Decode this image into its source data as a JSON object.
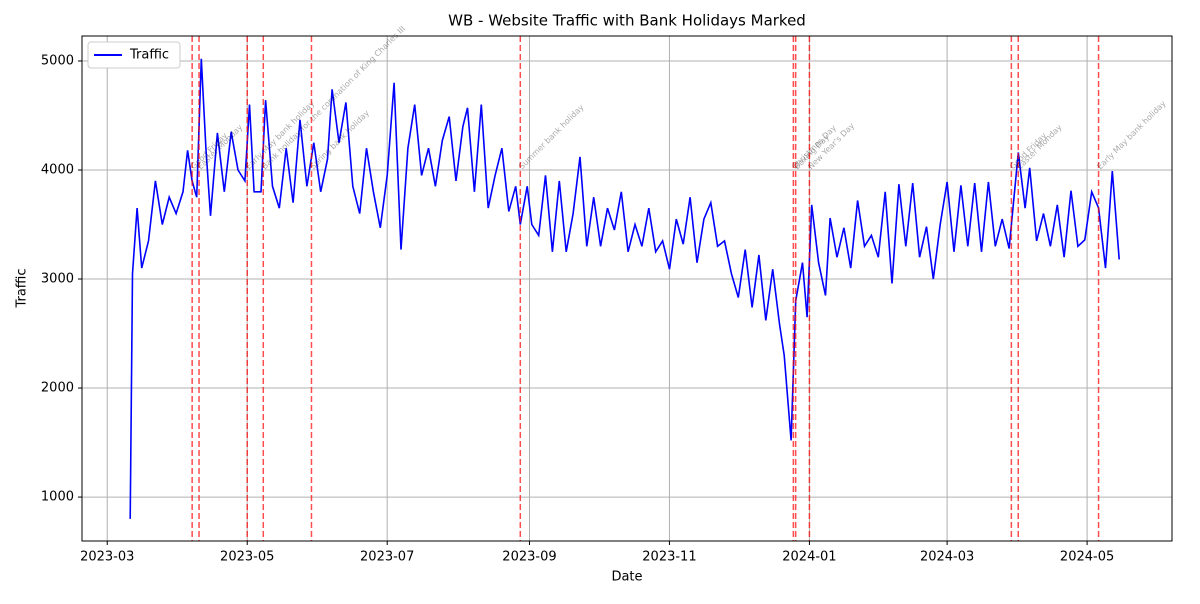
{
  "chart_data": {
    "type": "line",
    "title": "WB - Website Traffic with Bank Holidays Marked",
    "x_label": "Date",
    "y_label": "Traffic",
    "x": [
      "2023-03-11",
      "2023-03-12",
      "2023-03-14",
      "2023-03-16",
      "2023-03-19",
      "2023-03-22",
      "2023-03-25",
      "2023-03-28",
      "2023-03-31",
      "2023-04-03",
      "2023-04-05",
      "2023-04-07",
      "2023-04-09",
      "2023-04-11",
      "2023-04-13",
      "2023-04-15",
      "2023-04-18",
      "2023-04-21",
      "2023-04-24",
      "2023-04-27",
      "2023-04-30",
      "2023-05-02",
      "2023-05-04",
      "2023-05-07",
      "2023-05-09",
      "2023-05-12",
      "2023-05-15",
      "2023-05-18",
      "2023-05-21",
      "2023-05-24",
      "2023-05-27",
      "2023-05-30",
      "2023-06-02",
      "2023-06-05",
      "2023-06-07",
      "2023-06-10",
      "2023-06-13",
      "2023-06-16",
      "2023-06-19",
      "2023-06-22",
      "2023-06-25",
      "2023-06-28",
      "2023-07-01",
      "2023-07-04",
      "2023-07-07",
      "2023-07-10",
      "2023-07-13",
      "2023-07-16",
      "2023-07-19",
      "2023-07-22",
      "2023-07-25",
      "2023-07-28",
      "2023-07-31",
      "2023-08-03",
      "2023-08-05",
      "2023-08-08",
      "2023-08-11",
      "2023-08-14",
      "2023-08-17",
      "2023-08-20",
      "2023-08-23",
      "2023-08-26",
      "2023-08-28",
      "2023-08-31",
      "2023-09-02",
      "2023-09-05",
      "2023-09-08",
      "2023-09-11",
      "2023-09-14",
      "2023-09-17",
      "2023-09-20",
      "2023-09-23",
      "2023-09-26",
      "2023-09-29",
      "2023-10-02",
      "2023-10-05",
      "2023-10-08",
      "2023-10-11",
      "2023-10-14",
      "2023-10-17",
      "2023-10-20",
      "2023-10-23",
      "2023-10-26",
      "2023-10-29",
      "2023-11-01",
      "2023-11-04",
      "2023-11-07",
      "2023-11-10",
      "2023-11-13",
      "2023-11-16",
      "2023-11-19",
      "2023-11-22",
      "2023-11-25",
      "2023-11-28",
      "2023-12-01",
      "2023-12-04",
      "2023-12-07",
      "2023-12-10",
      "2023-12-13",
      "2023-12-16",
      "2023-12-19",
      "2023-12-21",
      "2023-12-24",
      "2023-12-26",
      "2023-12-29",
      "2023-12-31",
      "2024-01-02",
      "2024-01-05",
      "2024-01-08",
      "2024-01-10",
      "2024-01-13",
      "2024-01-16",
      "2024-01-19",
      "2024-01-22",
      "2024-01-25",
      "2024-01-28",
      "2024-01-31",
      "2024-02-03",
      "2024-02-06",
      "2024-02-09",
      "2024-02-12",
      "2024-02-15",
      "2024-02-18",
      "2024-02-21",
      "2024-02-24",
      "2024-02-27",
      "2024-03-01",
      "2024-03-04",
      "2024-03-07",
      "2024-03-10",
      "2024-03-13",
      "2024-03-16",
      "2024-03-19",
      "2024-03-22",
      "2024-03-25",
      "2024-03-28",
      "2024-04-01",
      "2024-04-04",
      "2024-04-06",
      "2024-04-09",
      "2024-04-12",
      "2024-04-15",
      "2024-04-18",
      "2024-04-21",
      "2024-04-24",
      "2024-04-27",
      "2024-04-30",
      "2024-05-03",
      "2024-05-06",
      "2024-05-09",
      "2024-05-12",
      "2024-05-15"
    ],
    "series": [
      {
        "name": "Traffic",
        "color": "#0000ff",
        "values": [
          800,
          3050,
          3650,
          3100,
          3350,
          3900,
          3500,
          3750,
          3600,
          3800,
          4180,
          3900,
          3750,
          5020,
          4200,
          3580,
          4340,
          3800,
          4350,
          4000,
          3900,
          4600,
          3800,
          3800,
          4640,
          3850,
          3650,
          4200,
          3700,
          4460,
          3850,
          4250,
          3800,
          4100,
          4740,
          4250,
          4620,
          3850,
          3600,
          4200,
          3800,
          3470,
          3950,
          4800,
          3270,
          4200,
          4600,
          3950,
          4200,
          3850,
          4270,
          4490,
          3900,
          4400,
          4570,
          3800,
          4600,
          3650,
          3950,
          4200,
          3620,
          3850,
          3500,
          3850,
          3500,
          3400,
          3950,
          3250,
          3900,
          3250,
          3600,
          4120,
          3300,
          3750,
          3300,
          3650,
          3450,
          3800,
          3250,
          3500,
          3300,
          3650,
          3250,
          3350,
          3090,
          3550,
          3320,
          3750,
          3150,
          3550,
          3700,
          3300,
          3350,
          3050,
          2830,
          3270,
          2740,
          3220,
          2620,
          3090,
          2580,
          2300,
          1520,
          2800,
          3150,
          2650,
          3680,
          3150,
          2850,
          3560,
          3200,
          3470,
          3100,
          3720,
          3300,
          3400,
          3200,
          3800,
          2960,
          3870,
          3300,
          3880,
          3200,
          3480,
          3000,
          3500,
          3890,
          3250,
          3860,
          3300,
          3880,
          3250,
          3890,
          3300,
          3550,
          3280,
          4160,
          3650,
          4020,
          3350,
          3600,
          3300,
          3680,
          3200,
          3810,
          3300,
          3360,
          3800,
          3650,
          3100,
          3990,
          3180
        ]
      }
    ],
    "holidays": [
      {
        "date": "2023-04-07",
        "name": "Good Friday"
      },
      {
        "date": "2023-04-10",
        "name": "Easter Monday"
      },
      {
        "date": "2023-05-01",
        "name": "Early May bank holiday"
      },
      {
        "date": "2023-05-08",
        "name": "Bank holiday for the coronation of King Charles III"
      },
      {
        "date": "2023-05-29",
        "name": "Spring bank holiday"
      },
      {
        "date": "2023-08-28",
        "name": "Summer bank holiday"
      },
      {
        "date": "2023-12-25",
        "name": "Christmas Day"
      },
      {
        "date": "2023-12-26",
        "name": "Boxing Day"
      },
      {
        "date": "2024-01-01",
        "name": "New Year's Day"
      },
      {
        "date": "2024-03-29",
        "name": "Good Friday"
      },
      {
        "date": "2024-04-01",
        "name": "Easter Monday"
      },
      {
        "date": "2024-05-06",
        "name": "Early May bank holiday"
      }
    ],
    "holiday_color": "#ff0000",
    "xlim": [
      "2023-02-18",
      "2024-06-07"
    ],
    "xticks": [
      {
        "value": "2023-03-01",
        "label": "2023-03"
      },
      {
        "value": "2023-05-01",
        "label": "2023-05"
      },
      {
        "value": "2023-07-01",
        "label": "2023-07"
      },
      {
        "value": "2023-09-01",
        "label": "2023-09"
      },
      {
        "value": "2023-11-01",
        "label": "2023-11"
      },
      {
        "value": "2024-01-01",
        "label": "2024-01"
      },
      {
        "value": "2024-03-01",
        "label": "2024-03"
      },
      {
        "value": "2024-05-01",
        "label": "2024-05"
      }
    ],
    "ylim": [
      597,
      5229
    ],
    "yticks": [
      1000,
      2000,
      3000,
      4000,
      5000
    ],
    "grid": true,
    "legend": "upper left"
  }
}
